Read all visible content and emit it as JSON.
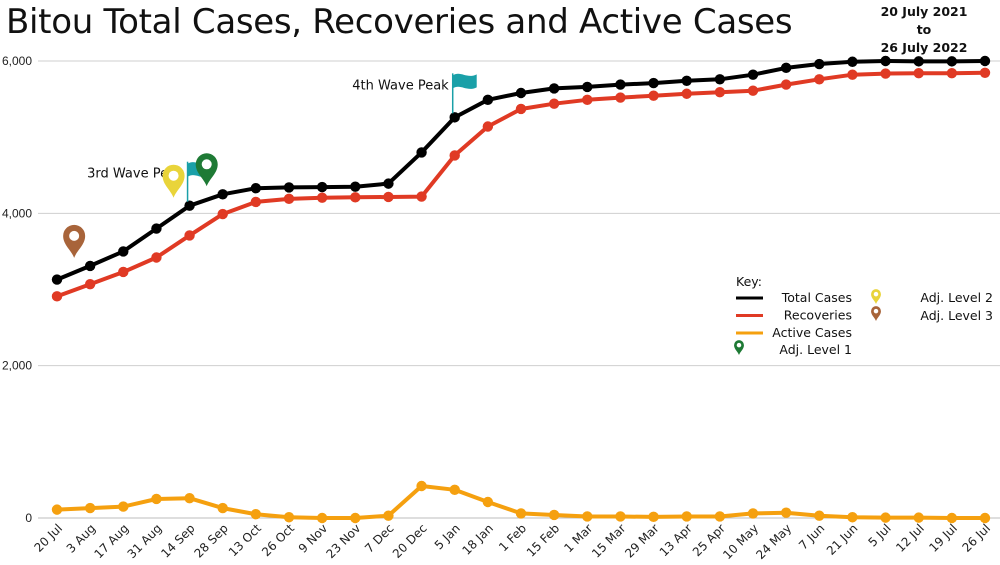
{
  "header": {
    "title": "Bitou Total Cases, Recoveries and Active Cases",
    "date_from": "20 July 2021",
    "date_to_word": "to",
    "date_to": "26 July 2022"
  },
  "chart_data": {
    "type": "line",
    "title": "Bitou Total Cases, Recoveries and Active Cases",
    "xlabel": "",
    "ylabel": "",
    "ylim": [
      0,
      6000
    ],
    "yticks": [
      0,
      2000,
      4000,
      6000
    ],
    "ytick_labels": [
      "0",
      "2,000",
      "4,000",
      "6,000"
    ],
    "grid": "horizontal",
    "categories": [
      "20 Jul",
      "3 Aug",
      "17 Aug",
      "31 Aug",
      "14 Sep",
      "28 Sep",
      "13 Oct",
      "26 Oct",
      "9 Nov",
      "23 Nov",
      "7 Dec",
      "20 Dec",
      "5 Jan",
      "18 Jan",
      "1 Feb",
      "15 Feb",
      "1 Mar",
      "15 Mar",
      "29 Mar",
      "13 Apr",
      "25 Apr",
      "10 May",
      "24 May",
      "7 Jun",
      "21 Jun",
      "5 Jul",
      "12 Jul",
      "19 Jul",
      "26 Jul"
    ],
    "series": [
      {
        "name": "Total Cases",
        "color": "#000000",
        "values": [
          3130,
          3310,
          3500,
          3800,
          4100,
          4250,
          4330,
          4340,
          4345,
          4350,
          4390,
          4800,
          5260,
          5490,
          5580,
          5640,
          5660,
          5690,
          5710,
          5740,
          5760,
          5820,
          5910,
          5960,
          5990,
          6000,
          5995,
          5995,
          6000
        ]
      },
      {
        "name": "Recoveries",
        "color": "#e03a24",
        "values": [
          2910,
          3070,
          3230,
          3420,
          3710,
          3990,
          4150,
          4190,
          4205,
          4210,
          4215,
          4220,
          4760,
          5140,
          5370,
          5440,
          5490,
          5520,
          5545,
          5570,
          5590,
          5610,
          5690,
          5760,
          5820,
          5835,
          5840,
          5840,
          5845
        ]
      },
      {
        "name": "Active Cases",
        "color": "#f5a00f",
        "values": [
          110,
          130,
          150,
          250,
          260,
          130,
          50,
          10,
          0,
          0,
          30,
          420,
          370,
          210,
          60,
          40,
          20,
          20,
          15,
          20,
          20,
          60,
          70,
          30,
          10,
          5,
          5,
          0,
          0
        ]
      }
    ],
    "annotations": [
      {
        "label": "3rd Wave Peak",
        "category": "14 Sep",
        "value": 4100
      },
      {
        "label": "4th Wave Peak",
        "category": "5 Jan",
        "value": 5260
      }
    ],
    "markers": [
      {
        "level": "Adj. Level 3",
        "category": "3 Aug",
        "value": 3310,
        "color": "#a8643a"
      },
      {
        "level": "Adj. Level 2",
        "category": "14 Sep",
        "value": 4100,
        "color": "#e9d43a"
      },
      {
        "level": "Adj. Level 1",
        "category": "28 Sep",
        "value": 4250,
        "color": "#1e7a35"
      }
    ],
    "legend": {
      "title": "Key:",
      "position": "right",
      "line_items": [
        "Total Cases",
        "Recoveries",
        "Active Cases"
      ],
      "marker_items": [
        "Adj. Level 1",
        "Adj. Level 2",
        "Adj. Level 3"
      ]
    }
  }
}
